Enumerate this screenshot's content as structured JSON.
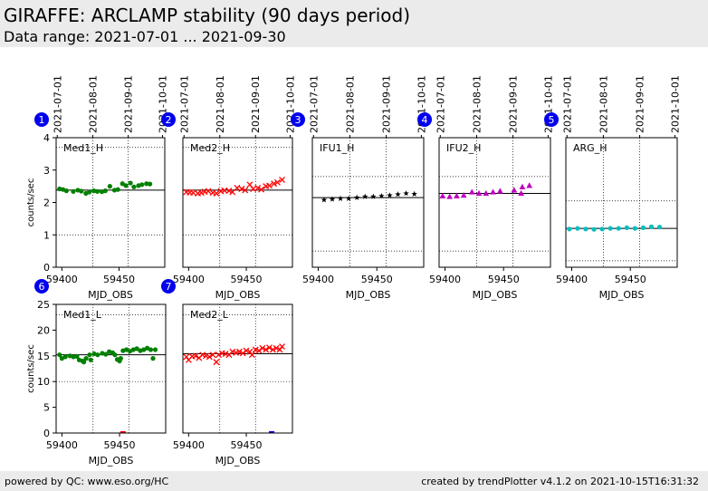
{
  "header": {
    "title": "GIRAFFE: ARCLAMP stability (90 days period)",
    "subtitle": "Data range: 2021-07-01 ... 2021-09-30"
  },
  "footer": {
    "left": "powered by QC: www.eso.org/HC",
    "right": "created by trendPlotter v4.1.2 on 2021-10-15T16:31:32"
  },
  "chart_data": [
    {
      "type": "scatter",
      "number": "1",
      "label": "Med1_H",
      "marker": "circle",
      "color": "#008000",
      "xlabel": "MJD_OBS",
      "ylabel": "counts/sec",
      "xlim": [
        59395,
        59490
      ],
      "ylim": [
        0,
        4
      ],
      "xticks": [
        59400,
        59450
      ],
      "yticks": [
        0,
        1,
        2,
        3,
        4
      ],
      "date_ticks": [
        "2021-07-01",
        "2021-08-01",
        "2021-09-01",
        "2021-10-01"
      ],
      "reference": 2.38,
      "ref_band": [
        1.0,
        3.7
      ],
      "points": [
        [
          59398,
          2.42
        ],
        [
          59401,
          2.4
        ],
        [
          59404,
          2.36
        ],
        [
          59410,
          2.34
        ],
        [
          59414,
          2.38
        ],
        [
          59417,
          2.35
        ],
        [
          59421,
          2.28
        ],
        [
          59424,
          2.32
        ],
        [
          59428,
          2.36
        ],
        [
          59431,
          2.34
        ],
        [
          59435,
          2.33
        ],
        [
          59438,
          2.36
        ],
        [
          59442,
          2.5
        ],
        [
          59446,
          2.38
        ],
        [
          59449,
          2.4
        ],
        [
          59453,
          2.58
        ],
        [
          59456,
          2.52
        ],
        [
          59460,
          2.6
        ],
        [
          59463,
          2.48
        ],
        [
          59467,
          2.52
        ],
        [
          59470,
          2.55
        ],
        [
          59474,
          2.58
        ],
        [
          59477,
          2.57
        ]
      ]
    },
    {
      "type": "scatter",
      "number": "2",
      "label": "Med2_H",
      "marker": "x",
      "color": "#ff0000",
      "xlabel": "MJD_OBS",
      "ylabel": "",
      "xlim": [
        59395,
        59490
      ],
      "ylim": [
        0,
        4
      ],
      "xticks": [
        59400,
        59450
      ],
      "yticks": [],
      "date_ticks": [
        "2021-07-01",
        "2021-08-01",
        "2021-09-01",
        "2021-10-01"
      ],
      "reference": 2.38,
      "ref_band": [
        1.0,
        3.7
      ],
      "points": [
        [
          59398,
          2.32
        ],
        [
          59401,
          2.31
        ],
        [
          59404,
          2.3
        ],
        [
          59408,
          2.28
        ],
        [
          59411,
          2.3
        ],
        [
          59414,
          2.33
        ],
        [
          59417,
          2.35
        ],
        [
          59421,
          2.3
        ],
        [
          59424,
          2.28
        ],
        [
          59428,
          2.35
        ],
        [
          59431,
          2.37
        ],
        [
          59435,
          2.36
        ],
        [
          59438,
          2.32
        ],
        [
          59442,
          2.45
        ],
        [
          59446,
          2.42
        ],
        [
          59449,
          2.38
        ],
        [
          59453,
          2.55
        ],
        [
          59456,
          2.42
        ],
        [
          59460,
          2.45
        ],
        [
          59463,
          2.4
        ],
        [
          59467,
          2.5
        ],
        [
          59470,
          2.52
        ],
        [
          59474,
          2.58
        ],
        [
          59477,
          2.62
        ],
        [
          59481,
          2.7
        ]
      ]
    },
    {
      "type": "scatter",
      "number": "3",
      "label": "IFU1_H",
      "marker": "star",
      "color": "#000000",
      "xlabel": "MJD_OBS",
      "ylabel": "",
      "xlim": [
        59395,
        59490
      ],
      "ylim": [
        0,
        4
      ],
      "xticks": [
        59400,
        59450
      ],
      "yticks": [],
      "date_ticks": [
        "2021-07-01",
        "2021-08-01",
        "2021-09-01",
        "2021-10-01"
      ],
      "reference": 2.15,
      "ref_band": [
        0.5,
        2.8
      ],
      "points": [
        [
          59405,
          2.08
        ],
        [
          59412,
          2.1
        ],
        [
          59419,
          2.12
        ],
        [
          59426,
          2.12
        ],
        [
          59433,
          2.15
        ],
        [
          59440,
          2.18
        ],
        [
          59447,
          2.18
        ],
        [
          59454,
          2.2
        ],
        [
          59461,
          2.22
        ],
        [
          59468,
          2.25
        ],
        [
          59475,
          2.28
        ],
        [
          59482,
          2.26
        ]
      ]
    },
    {
      "type": "scatter",
      "number": "4",
      "label": "IFU2_H",
      "marker": "triangle",
      "color": "#bf00bf",
      "xlabel": "MJD_OBS",
      "ylabel": "",
      "xlim": [
        59395,
        59490
      ],
      "ylim": [
        0,
        4
      ],
      "xticks": [
        59400,
        59450
      ],
      "yticks": [],
      "date_ticks": [
        "2021-07-01",
        "2021-08-01",
        "2021-09-01",
        "2021-10-01"
      ],
      "reference": 2.28,
      "ref_band": [
        0.5,
        2.8
      ],
      "points": [
        [
          59398,
          2.2
        ],
        [
          59404,
          2.18
        ],
        [
          59410,
          2.2
        ],
        [
          59416,
          2.22
        ],
        [
          59423,
          2.32
        ],
        [
          59429,
          2.28
        ],
        [
          59435,
          2.28
        ],
        [
          59441,
          2.32
        ],
        [
          59447,
          2.35
        ],
        [
          59459,
          2.38
        ],
        [
          59465,
          2.28
        ],
        [
          59466,
          2.48
        ],
        [
          59472,
          2.52
        ]
      ]
    },
    {
      "type": "scatter",
      "number": "5",
      "label": "ARG_H",
      "marker": "circle",
      "color": "#00bfbf",
      "xlabel": "MJD_OBS",
      "ylabel": "",
      "xlim": [
        59395,
        59490
      ],
      "ylim": [
        0,
        4
      ],
      "xticks": [
        59400,
        59450
      ],
      "yticks": [],
      "date_ticks": [
        "2021-07-01",
        "2021-08-01",
        "2021-09-01",
        "2021-10-01"
      ],
      "reference": 1.2,
      "ref_band": [
        0.2,
        2.05
      ],
      "points": [
        [
          59398,
          1.18
        ],
        [
          59405,
          1.2
        ],
        [
          59412,
          1.18
        ],
        [
          59419,
          1.17
        ],
        [
          59426,
          1.18
        ],
        [
          59433,
          1.2
        ],
        [
          59440,
          1.2
        ],
        [
          59447,
          1.22
        ],
        [
          59454,
          1.2
        ],
        [
          59461,
          1.22
        ],
        [
          59468,
          1.25
        ],
        [
          59475,
          1.24
        ]
      ]
    },
    {
      "type": "scatter",
      "number": "6",
      "label": "Med1_L",
      "marker": "circle",
      "color": "#008000",
      "xlabel": "MJD_OBS",
      "ylabel": "counts/sec",
      "xlim": [
        59395,
        59490
      ],
      "ylim": [
        0,
        25
      ],
      "xticks": [
        59400,
        59450
      ],
      "yticks": [
        0,
        5,
        10,
        15,
        20,
        25
      ],
      "date_ticks": [],
      "reference": 15.2,
      "ref_band": [
        10.0,
        23.0
      ],
      "points": [
        [
          59398,
          15.2
        ],
        [
          59400,
          14.5
        ],
        [
          59403,
          14.8
        ],
        [
          59407,
          15.0
        ],
        [
          59410,
          14.8
        ],
        [
          59413,
          14.9
        ],
        [
          59415,
          14.2
        ],
        [
          59418,
          14.0
        ],
        [
          59419,
          13.8
        ],
        [
          59421,
          14.5
        ],
        [
          59424,
          15.2
        ],
        [
          59425,
          14.2
        ],
        [
          59428,
          15.4
        ],
        [
          59431,
          15.2
        ],
        [
          59435,
          15.5
        ],
        [
          59438,
          15.3
        ],
        [
          59441,
          15.8
        ],
        [
          59444,
          15.6
        ],
        [
          59446,
          15.2
        ],
        [
          59448,
          14.3
        ],
        [
          59450,
          14.0
        ],
        [
          59451,
          14.5
        ],
        [
          59453,
          16.0
        ],
        [
          59456,
          16.2
        ],
        [
          59459,
          15.9
        ],
        [
          59462,
          16.2
        ],
        [
          59465,
          16.4
        ],
        [
          59468,
          16.0
        ],
        [
          59471,
          16.2
        ],
        [
          59474,
          16.5
        ],
        [
          59477,
          16.2
        ],
        [
          59479,
          14.5
        ],
        [
          59481,
          16.2
        ]
      ],
      "outliers": [
        {
          "x": 59453,
          "y": 0,
          "color": "#ff0000"
        }
      ]
    },
    {
      "type": "scatter",
      "number": "7",
      "label": "Med2_L",
      "marker": "x",
      "color": "#ff0000",
      "xlabel": "MJD_OBS",
      "ylabel": "",
      "xlim": [
        59395,
        59490
      ],
      "ylim": [
        0,
        25
      ],
      "xticks": [
        59400,
        59450
      ],
      "yticks": [],
      "date_ticks": [],
      "reference": 15.4,
      "ref_band": [
        10.0,
        23.0
      ],
      "points": [
        [
          59398,
          14.8
        ],
        [
          59400,
          14.2
        ],
        [
          59403,
          14.9
        ],
        [
          59406,
          15.0
        ],
        [
          59409,
          14.6
        ],
        [
          59412,
          15.2
        ],
        [
          59415,
          15.0
        ],
        [
          59418,
          14.8
        ],
        [
          59421,
          15.2
        ],
        [
          59424,
          13.8
        ],
        [
          59426,
          15.2
        ],
        [
          59429,
          15.5
        ],
        [
          59432,
          15.4
        ],
        [
          59435,
          15.2
        ],
        [
          59438,
          15.8
        ],
        [
          59441,
          15.6
        ],
        [
          59444,
          15.8
        ],
        [
          59447,
          15.5
        ],
        [
          59450,
          16.0
        ],
        [
          59453,
          15.8
        ],
        [
          59455,
          15.2
        ],
        [
          59458,
          16.2
        ],
        [
          59461,
          16.0
        ],
        [
          59464,
          16.5
        ],
        [
          59467,
          16.2
        ],
        [
          59470,
          16.6
        ],
        [
          59473,
          16.2
        ],
        [
          59476,
          16.5
        ],
        [
          59479,
          16.2
        ],
        [
          59481,
          16.8
        ]
      ],
      "outliers": [
        {
          "x": 59472,
          "y": 0,
          "color": "#0000ff"
        }
      ]
    }
  ]
}
